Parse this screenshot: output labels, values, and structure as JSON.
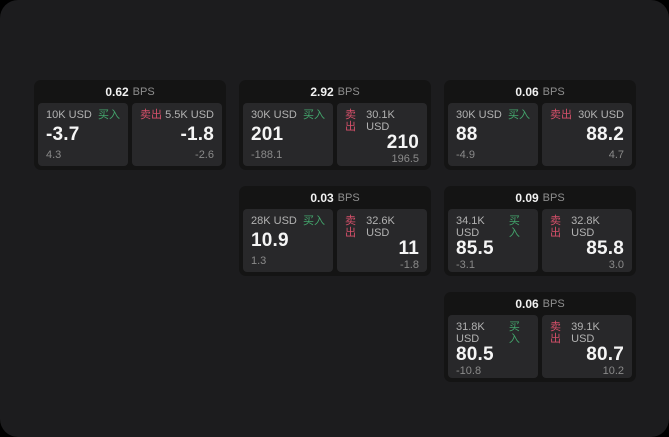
{
  "labels": {
    "bps": "BPS",
    "buy": "买入",
    "sell": "卖出"
  },
  "colors": {
    "background": "#000000",
    "surface": "#1c1c1e",
    "card": "#141414",
    "panel": "#28282a",
    "buy_green": "#43a56c",
    "sell_red": "#d6506a"
  },
  "cards": [
    {
      "bps": "0.62",
      "buy": {
        "amount": "10K USD",
        "price": "-3.7",
        "change": "4.3"
      },
      "sell": {
        "amount": "5.5K USD",
        "price": "-1.8",
        "change": "-2.6"
      }
    },
    {
      "bps": "2.92",
      "buy": {
        "amount": "30K USD",
        "price": "201",
        "change": "-188.1"
      },
      "sell": {
        "amount": "30.1K USD",
        "price": "210",
        "change": "196.5"
      }
    },
    {
      "bps": "0.06",
      "buy": {
        "amount": "30K USD",
        "price": "88",
        "change": "-4.9"
      },
      "sell": {
        "amount": "30K USD",
        "price": "88.2",
        "change": "4.7"
      }
    },
    {
      "bps": "0.03",
      "buy": {
        "amount": "28K USD",
        "price": "10.9",
        "change": "1.3"
      },
      "sell": {
        "amount": "32.6K USD",
        "price": "11",
        "change": "-1.8"
      }
    },
    {
      "bps": "0.09",
      "buy": {
        "amount": "34.1K USD",
        "price": "85.5",
        "change": "-3.1"
      },
      "sell": {
        "amount": "32.8K USD",
        "price": "85.8",
        "change": "3.0"
      }
    },
    {
      "bps": "0.06",
      "buy": {
        "amount": "31.8K USD",
        "price": "80.5",
        "change": "-10.8"
      },
      "sell": {
        "amount": "39.1K USD",
        "price": "80.7",
        "change": "10.2"
      }
    }
  ]
}
